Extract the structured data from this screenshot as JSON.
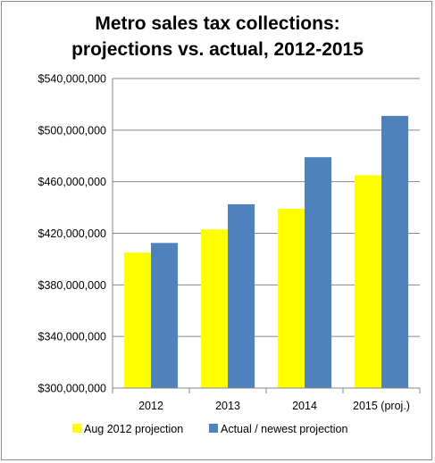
{
  "chart_data": {
    "type": "bar",
    "title_lines": [
      "Metro sales tax collections:",
      "projections vs. actual, 2012-2015"
    ],
    "categories": [
      "2012",
      "2013",
      "2014",
      "2015 (proj.)"
    ],
    "series": [
      {
        "name": "Aug 2012 projection",
        "color": "#ffff00",
        "values": [
          405000000,
          423000000,
          439000000,
          465000000
        ]
      },
      {
        "name": "Actual / newest projection",
        "color": "#4f81bd",
        "values": [
          412500000,
          442500000,
          479000000,
          511000000
        ]
      }
    ],
    "y_ticks": [
      300000000,
      340000000,
      380000000,
      420000000,
      460000000,
      500000000,
      540000000
    ],
    "y_tick_labels": [
      "$300,000,000",
      "$340,000,000",
      "$380,000,000",
      "$420,000,000",
      "$460,000,000",
      "$500,000,000",
      "$540,000,000"
    ],
    "ylim": [
      300000000,
      540000000
    ],
    "grid": true,
    "legend_position": "bottom"
  }
}
